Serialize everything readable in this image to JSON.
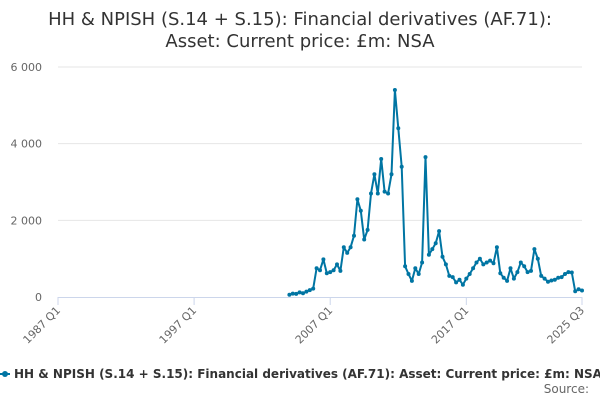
{
  "chart_data": {
    "type": "line",
    "title": "HH & NPISH (S.14 + S.15): Financial derivatives (AF.71): Asset: Current price: £m: NSA",
    "title_lines": [
      "HH & NPISH (S.14 + S.15): Financial derivatives (AF.71):",
      "Asset: Current price: £m: NSA"
    ],
    "xlabel": "",
    "ylabel": "",
    "x_range": [
      "1987 Q1",
      "2025 Q3"
    ],
    "x_ticks": [
      "1987 Q1",
      "1997 Q1",
      "2007 Q1",
      "2017 Q1",
      "2025 Q3"
    ],
    "y_ticks": [
      0,
      2000,
      4000,
      6000
    ],
    "y_tick_labels": [
      "0",
      "2 000",
      "4 000",
      "6 000"
    ],
    "ylim": [
      0,
      6000
    ],
    "grid": true,
    "legend_position": "bottom",
    "color": "#0075a3",
    "series": [
      {
        "name": "HH & NPISH (S.14 + S.15): Financial derivatives (AF.71): Asset: Current price: £m: NSA",
        "points": [
          [
            "2004 Q1",
            60
          ],
          [
            "2004 Q2",
            90
          ],
          [
            "2004 Q3",
            80
          ],
          [
            "2004 Q4",
            120
          ],
          [
            "2005 Q1",
            100
          ],
          [
            "2005 Q2",
            140
          ],
          [
            "2005 Q3",
            180
          ],
          [
            "2005 Q4",
            220
          ],
          [
            "2006 Q1",
            750
          ],
          [
            "2006 Q2",
            700
          ],
          [
            "2006 Q3",
            980
          ],
          [
            "2006 Q4",
            620
          ],
          [
            "2007 Q1",
            650
          ],
          [
            "2007 Q2",
            700
          ],
          [
            "2007 Q3",
            850
          ],
          [
            "2007 Q4",
            680
          ],
          [
            "2008 Q1",
            1300
          ],
          [
            "2008 Q2",
            1150
          ],
          [
            "2008 Q3",
            1300
          ],
          [
            "2008 Q4",
            1600
          ],
          [
            "2009 Q1",
            2550
          ],
          [
            "2009 Q2",
            2250
          ],
          [
            "2009 Q3",
            1500
          ],
          [
            "2009 Q4",
            1750
          ],
          [
            "2010 Q1",
            2700
          ],
          [
            "2010 Q2",
            3200
          ],
          [
            "2010 Q3",
            2700
          ],
          [
            "2010 Q4",
            3600
          ],
          [
            "2011 Q1",
            2750
          ],
          [
            "2011 Q2",
            2700
          ],
          [
            "2011 Q3",
            3200
          ],
          [
            "2011 Q4",
            5400
          ],
          [
            "2012 Q1",
            4400
          ],
          [
            "2012 Q2",
            3400
          ],
          [
            "2012 Q3",
            800
          ],
          [
            "2012 Q4",
            600
          ],
          [
            "2013 Q1",
            420
          ],
          [
            "2013 Q2",
            750
          ],
          [
            "2013 Q3",
            600
          ],
          [
            "2013 Q4",
            900
          ],
          [
            "2014 Q1",
            3650
          ],
          [
            "2014 Q2",
            1100
          ],
          [
            "2014 Q3",
            1250
          ],
          [
            "2014 Q4",
            1400
          ],
          [
            "2015 Q1",
            1720
          ],
          [
            "2015 Q2",
            1050
          ],
          [
            "2015 Q3",
            850
          ],
          [
            "2015 Q4",
            550
          ],
          [
            "2016 Q1",
            520
          ],
          [
            "2016 Q2",
            380
          ],
          [
            "2016 Q3",
            450
          ],
          [
            "2016 Q4",
            320
          ],
          [
            "2017 Q1",
            480
          ],
          [
            "2017 Q2",
            600
          ],
          [
            "2017 Q3",
            750
          ],
          [
            "2017 Q4",
            900
          ],
          [
            "2018 Q1",
            1000
          ],
          [
            "2018 Q2",
            850
          ],
          [
            "2018 Q3",
            900
          ],
          [
            "2018 Q4",
            950
          ],
          [
            "2019 Q1",
            880
          ],
          [
            "2019 Q2",
            1300
          ],
          [
            "2019 Q3",
            620
          ],
          [
            "2019 Q4",
            500
          ],
          [
            "2020 Q1",
            420
          ],
          [
            "2020 Q2",
            750
          ],
          [
            "2020 Q3",
            480
          ],
          [
            "2020 Q4",
            650
          ],
          [
            "2021 Q1",
            900
          ],
          [
            "2021 Q2",
            800
          ],
          [
            "2021 Q3",
            650
          ],
          [
            "2021 Q4",
            680
          ],
          [
            "2022 Q1",
            1250
          ],
          [
            "2022 Q2",
            1000
          ],
          [
            "2022 Q3",
            550
          ],
          [
            "2022 Q4",
            480
          ],
          [
            "2023 Q1",
            400
          ],
          [
            "2023 Q2",
            430
          ],
          [
            "2023 Q3",
            450
          ],
          [
            "2023 Q4",
            500
          ],
          [
            "2024 Q1",
            520
          ],
          [
            "2024 Q2",
            600
          ],
          [
            "2024 Q3",
            650
          ],
          [
            "2024 Q4",
            640
          ],
          [
            "2025 Q1",
            150
          ],
          [
            "2025 Q2",
            200
          ],
          [
            "2025 Q3",
            170
          ]
        ]
      }
    ]
  },
  "credits": "Source:"
}
